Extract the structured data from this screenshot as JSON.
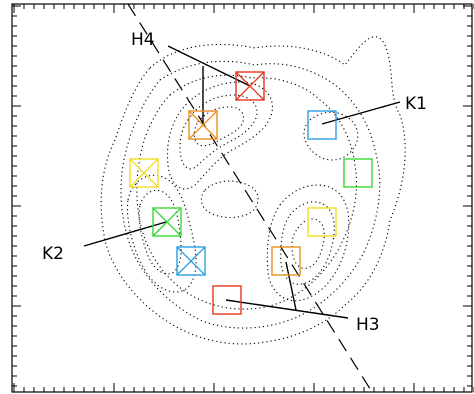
{
  "labels": {
    "h4": "H4",
    "k1": "K1",
    "k2": "K2",
    "h3": "H3"
  },
  "colors": {
    "red": "#e8321e",
    "orange": "#e8901e",
    "blue": "#2a9fe0",
    "green": "#38d838",
    "yellow": "#f2de24",
    "axis": "#000000",
    "contour": "#000000"
  },
  "markers": [
    {
      "id": "h4-red",
      "color": "red",
      "crossed": true
    },
    {
      "id": "h4-orange",
      "color": "orange",
      "crossed": true
    },
    {
      "id": "k1-blue",
      "color": "blue",
      "crossed": false
    },
    {
      "id": "k1-green",
      "color": "green",
      "crossed": false
    },
    {
      "id": "k1-yellow",
      "color": "yellow",
      "crossed": false
    },
    {
      "id": "k2-yellow",
      "color": "yellow",
      "crossed": true
    },
    {
      "id": "k2-green",
      "color": "green",
      "crossed": true
    },
    {
      "id": "k2-blue",
      "color": "blue",
      "crossed": true
    },
    {
      "id": "h3-orange",
      "color": "orange",
      "crossed": false
    },
    {
      "id": "h3-red",
      "color": "red",
      "crossed": false
    }
  ]
}
